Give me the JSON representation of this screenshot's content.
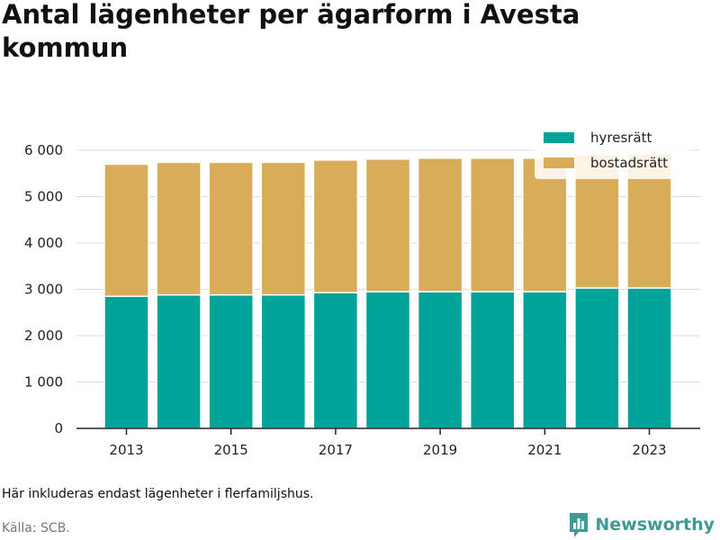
{
  "chart_data": {
    "type": "bar",
    "stacked": true,
    "title": "Antal lägenheter per ägarform i Avesta kommun",
    "x": [
      2013,
      2014,
      2015,
      2016,
      2017,
      2018,
      2019,
      2020,
      2021,
      2022,
      2023
    ],
    "x_tick_labels": [
      "2013",
      "2015",
      "2017",
      "2019",
      "2021",
      "2023"
    ],
    "y_ticks": [
      0,
      1000,
      2000,
      3000,
      4000,
      5000,
      6000
    ],
    "y_tick_labels": [
      "0",
      "1 000",
      "2 000",
      "3 000",
      "4 000",
      "5 000",
      "6 000"
    ],
    "ylim": [
      0,
      6000
    ],
    "grid": true,
    "legend_position": "top-right",
    "series": [
      {
        "name": "hyresrätt",
        "color": "#00a39a",
        "values": [
          2850,
          2880,
          2880,
          2880,
          2930,
          2950,
          2950,
          2950,
          2950,
          3030,
          3030
        ]
      },
      {
        "name": "bostadsrätt",
        "color": "#d9ac59",
        "values": [
          2850,
          2860,
          2860,
          2860,
          2860,
          2860,
          2880,
          2880,
          2880,
          2880,
          2900
        ]
      }
    ]
  },
  "footer": {
    "note": "Här inkluderas endast lägenheter i flerfamiljshus.",
    "source": "Källa: SCB.",
    "brand": "Newsworthy"
  },
  "brand_logo": {
    "icon": "bar-chart-logo-icon",
    "color": "#3f9a96"
  }
}
